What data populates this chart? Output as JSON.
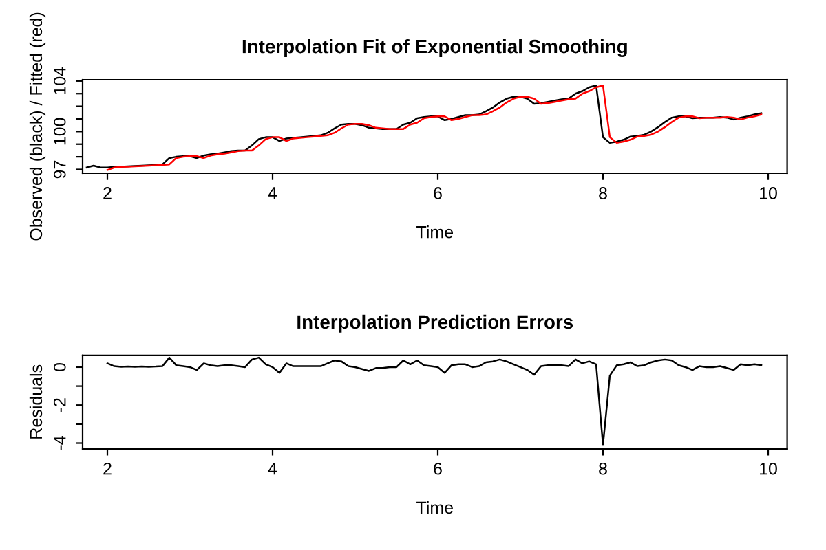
{
  "chart_data": [
    {
      "type": "line",
      "title": "Interpolation Fit of Exponential Smoothing",
      "xlabel": "Time",
      "ylabel": "Observed (black) / Fitted (red)",
      "xlim": [
        1.7,
        10.23
      ],
      "xticks": [
        2,
        4,
        6,
        8,
        10
      ],
      "ylim": [
        96.7,
        104.1
      ],
      "yticks": [
        97,
        {
          "value": 98,
          "label": null
        },
        {
          "value": 99,
          "label": null
        },
        100,
        {
          "value": 101,
          "label": null
        },
        {
          "value": 102,
          "label": null
        },
        {
          "value": 103,
          "label": null
        },
        104
      ],
      "grid": false,
      "legend": false,
      "series": [
        {
          "color": "#000000",
          "x": [
            1.75,
            1.833,
            1.917,
            2,
            2.083,
            2.167,
            2.25,
            2.333,
            2.417,
            2.5,
            2.583,
            2.667,
            2.75,
            2.833,
            2.917,
            3,
            3.083,
            3.167,
            3.25,
            3.333,
            3.417,
            3.5,
            3.583,
            3.667,
            3.75,
            3.833,
            3.917,
            4,
            4.083,
            4.167,
            4.25,
            4.333,
            4.417,
            4.5,
            4.583,
            4.667,
            4.75,
            4.833,
            4.917,
            5,
            5.083,
            5.167,
            5.25,
            5.333,
            5.417,
            5.5,
            5.583,
            5.667,
            5.75,
            5.833,
            5.917,
            6,
            6.083,
            6.167,
            6.25,
            6.333,
            6.417,
            6.5,
            6.583,
            6.667,
            6.75,
            6.833,
            6.917,
            7,
            7.083,
            7.167,
            7.25,
            7.333,
            7.417,
            7.5,
            7.583,
            7.667,
            7.75,
            7.833,
            7.917,
            8,
            8.083,
            8.167,
            8.25,
            8.333,
            8.417,
            8.5,
            8.583,
            8.667,
            8.75,
            8.833,
            8.917,
            9,
            9.083,
            9.167,
            9.25,
            9.333,
            9.417,
            9.5,
            9.583,
            9.667,
            9.75,
            9.833,
            9.917
          ],
          "values": [
            97.15,
            97.3,
            97.15,
            97.15,
            97.2,
            97.22,
            97.25,
            97.27,
            97.3,
            97.32,
            97.35,
            97.4,
            97.9,
            98.0,
            98.05,
            98.05,
            97.9,
            98.1,
            98.2,
            98.25,
            98.35,
            98.45,
            98.5,
            98.5,
            98.9,
            99.4,
            99.55,
            99.55,
            99.25,
            99.45,
            99.5,
            99.55,
            99.6,
            99.65,
            99.7,
            99.9,
            100.25,
            100.55,
            100.6,
            100.6,
            100.5,
            100.3,
            100.25,
            100.2,
            100.2,
            100.2,
            100.55,
            100.7,
            101.05,
            101.15,
            101.2,
            101.2,
            100.9,
            101.0,
            101.15,
            101.3,
            101.3,
            101.35,
            101.6,
            101.9,
            102.3,
            102.6,
            102.75,
            102.75,
            102.6,
            102.2,
            102.25,
            102.35,
            102.45,
            102.55,
            102.6,
            103.0,
            103.2,
            103.5,
            103.65,
            99.55,
            99.1,
            99.2,
            99.35,
            99.6,
            99.65,
            99.75,
            100.0,
            100.35,
            100.75,
            101.1,
            101.2,
            101.2,
            101.05,
            101.1,
            101.1,
            101.1,
            101.15,
            101.1,
            100.95,
            101.1,
            101.2,
            101.35,
            101.45
          ]
        },
        {
          "color": "#ff0000",
          "x": [
            2,
            2.083,
            2.167,
            2.25,
            2.333,
            2.417,
            2.5,
            2.583,
            2.667,
            2.75,
            2.833,
            2.917,
            3,
            3.083,
            3.167,
            3.25,
            3.333,
            3.417,
            3.5,
            3.583,
            3.667,
            3.75,
            3.833,
            3.917,
            4,
            4.083,
            4.167,
            4.25,
            4.333,
            4.417,
            4.5,
            4.583,
            4.667,
            4.75,
            4.833,
            4.917,
            5,
            5.083,
            5.167,
            5.25,
            5.333,
            5.417,
            5.5,
            5.583,
            5.667,
            5.75,
            5.833,
            5.917,
            6,
            6.083,
            6.167,
            6.25,
            6.333,
            6.417,
            6.5,
            6.583,
            6.667,
            6.75,
            6.833,
            6.917,
            7,
            7.083,
            7.167,
            7.25,
            7.333,
            7.417,
            7.5,
            7.583,
            7.667,
            7.75,
            7.833,
            7.917,
            8,
            8.083,
            8.167,
            8.25,
            8.333,
            8.417,
            8.5,
            8.583,
            8.667,
            8.75,
            8.833,
            8.917,
            9,
            9.083,
            9.167,
            9.25,
            9.333,
            9.417,
            9.5,
            9.583,
            9.667,
            9.75,
            9.833,
            9.917
          ],
          "values": [
            96.95,
            97.15,
            97.2,
            97.22,
            97.25,
            97.27,
            97.3,
            97.32,
            97.35,
            97.4,
            97.9,
            98.0,
            98.05,
            98.05,
            97.9,
            98.1,
            98.2,
            98.25,
            98.35,
            98.45,
            98.5,
            98.5,
            98.9,
            99.4,
            99.55,
            99.55,
            99.25,
            99.45,
            99.5,
            99.55,
            99.6,
            99.65,
            99.7,
            99.9,
            100.25,
            100.55,
            100.6,
            100.6,
            100.5,
            100.3,
            100.25,
            100.2,
            100.2,
            100.2,
            100.55,
            100.7,
            101.05,
            101.15,
            101.2,
            101.2,
            100.9,
            101.0,
            101.15,
            101.3,
            101.3,
            101.35,
            101.6,
            101.9,
            102.3,
            102.6,
            102.75,
            102.75,
            102.6,
            102.2,
            102.25,
            102.35,
            102.45,
            102.55,
            102.6,
            103.0,
            103.2,
            103.5,
            103.65,
            99.55,
            99.1,
            99.2,
            99.35,
            99.6,
            99.65,
            99.75,
            100.0,
            100.35,
            100.75,
            101.1,
            101.2,
            101.2,
            101.05,
            101.1,
            101.1,
            101.1,
            101.15,
            101.1,
            100.95,
            101.1,
            101.2,
            101.35
          ]
        }
      ]
    },
    {
      "type": "line",
      "title": "Interpolation Prediction Errors",
      "xlabel": "Time",
      "ylabel": "Residuals",
      "xlim": [
        1.7,
        10.23
      ],
      "xticks": [
        2,
        4,
        6,
        8,
        10
      ],
      "ylim": [
        -4.3,
        0.62
      ],
      "yticks": [
        -4,
        {
          "value": -3,
          "label": null
        },
        -2,
        {
          "value": -1,
          "label": null
        },
        0
      ],
      "grid": false,
      "legend": false,
      "series": [
        {
          "color": "#000000",
          "x": [
            2,
            2.083,
            2.167,
            2.25,
            2.333,
            2.417,
            2.5,
            2.583,
            2.667,
            2.75,
            2.833,
            2.917,
            3,
            3.083,
            3.167,
            3.25,
            3.333,
            3.417,
            3.5,
            3.583,
            3.667,
            3.75,
            3.833,
            3.917,
            4,
            4.083,
            4.167,
            4.25,
            4.333,
            4.417,
            4.5,
            4.583,
            4.667,
            4.75,
            4.833,
            4.917,
            5,
            5.083,
            5.167,
            5.25,
            5.333,
            5.417,
            5.5,
            5.583,
            5.667,
            5.75,
            5.833,
            5.917,
            6,
            6.083,
            6.167,
            6.25,
            6.333,
            6.417,
            6.5,
            6.583,
            6.667,
            6.75,
            6.833,
            6.917,
            7,
            7.083,
            7.167,
            7.25,
            7.333,
            7.417,
            7.5,
            7.583,
            7.667,
            7.75,
            7.833,
            7.917,
            8,
            8.083,
            8.167,
            8.25,
            8.333,
            8.417,
            8.5,
            8.583,
            8.667,
            8.75,
            8.833,
            8.917,
            9,
            9.083,
            9.167,
            9.25,
            9.333,
            9.417,
            9.5,
            9.583,
            9.667,
            9.75,
            9.833,
            9.917
          ],
          "values": [
            0.2,
            0.05,
            0.02,
            0.03,
            0.02,
            0.03,
            0.02,
            0.03,
            0.05,
            0.5,
            0.1,
            0.05,
            0,
            -0.15,
            0.2,
            0.1,
            0.05,
            0.1,
            0.1,
            0.05,
            0,
            0.4,
            0.5,
            0.15,
            0,
            -0.3,
            0.2,
            0.05,
            0.05,
            0.05,
            0.05,
            0.05,
            0.2,
            0.35,
            0.3,
            0.05,
            0,
            -0.1,
            -0.2,
            -0.05,
            -0.05,
            0,
            0,
            0.35,
            0.15,
            0.35,
            0.1,
            0.05,
            0,
            -0.3,
            0.1,
            0.15,
            0.15,
            0,
            0.05,
            0.25,
            0.3,
            0.4,
            0.3,
            0.15,
            0,
            -0.15,
            -0.4,
            0.05,
            0.1,
            0.1,
            0.1,
            0.05,
            0.4,
            0.2,
            0.3,
            0.15,
            -4.1,
            -0.45,
            0.1,
            0.15,
            0.25,
            0.05,
            0.1,
            0.25,
            0.35,
            0.4,
            0.35,
            0.1,
            0,
            -0.15,
            0.05,
            0,
            0,
            0.05,
            -0.05,
            -0.15,
            0.15,
            0.1,
            0.15,
            0.1
          ]
        }
      ]
    }
  ]
}
